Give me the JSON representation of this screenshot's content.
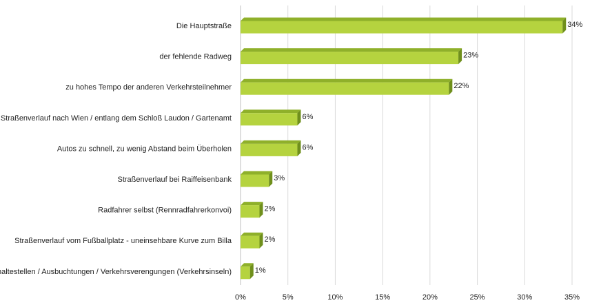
{
  "chart_data": {
    "type": "bar",
    "orientation": "horizontal",
    "title": "",
    "xlabel": "",
    "ylabel": "",
    "xlim": [
      0,
      35
    ],
    "ticks": [
      0,
      5,
      10,
      15,
      20,
      25,
      30,
      35
    ],
    "tick_labels": [
      "0%",
      "5%",
      "10%",
      "15%",
      "20%",
      "25%",
      "30%",
      "35%"
    ],
    "grid": "vertical",
    "categories": [
      "Die Hauptstraße",
      "der fehlende Radweg",
      "zu hohes Tempo der anderen Verkehrsteilnehmer",
      "Straßenverlauf nach Wien / entlang dem Schloß Laudon / Gartenamt",
      "Autos zu schnell, zu wenig Abstand beim Überholen",
      "Straßenverlauf bei Raiffeisenbank",
      "Radfahrer selbst (Rennradfahrerkonvoi)",
      "Straßenverlauf vom Fußballplatz - uneinsehbare Kurve zum Billa",
      "Bushaltestellen / Ausbuchtungen / Verkehrsverengungen (Verkehrsinseln)"
    ],
    "values": [
      34,
      23,
      22,
      6,
      6,
      3,
      2,
      2,
      1
    ],
    "value_labels": [
      "34%",
      "23%",
      "22%",
      "6%",
      "6%",
      "3%",
      "2%",
      "2%",
      "1%"
    ],
    "colors": {
      "bar_front": "#b5d33f",
      "bar_top": "#8fb02a",
      "bar_side": "#6f8f1c",
      "grid": "#d9d9d9",
      "axis": "#bfbfbf"
    }
  }
}
